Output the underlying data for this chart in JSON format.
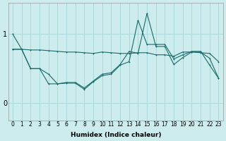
{
  "xlabel": "Humidex (Indice chaleur)",
  "bg_color": "#cceced",
  "grid_color": "#aad8da",
  "line_color": "#1a6b6b",
  "x_ticks": [
    0,
    1,
    2,
    3,
    4,
    5,
    6,
    7,
    8,
    9,
    10,
    11,
    12,
    13,
    14,
    15,
    16,
    17,
    18,
    19,
    20,
    21,
    22,
    23
  ],
  "ylim": [
    -0.25,
    1.45
  ],
  "yticks": [
    0,
    1
  ],
  "line1_y": [
    0.78,
    0.78,
    0.77,
    0.77,
    0.76,
    0.75,
    0.74,
    0.74,
    0.73,
    0.72,
    0.74,
    0.73,
    0.72,
    0.72,
    0.73,
    0.73,
    0.7,
    0.7,
    0.68,
    0.74,
    0.74,
    0.73,
    0.72,
    0.6
  ],
  "line2_y": [
    1.0,
    0.78,
    0.5,
    0.5,
    0.42,
    0.28,
    0.3,
    0.3,
    0.22,
    0.32,
    0.42,
    0.44,
    0.56,
    0.75,
    0.72,
    1.3,
    0.82,
    0.82,
    0.56,
    0.66,
    0.74,
    0.74,
    0.65,
    0.36
  ],
  "line3_y": [
    0.78,
    0.78,
    0.5,
    0.5,
    0.28,
    0.28,
    0.29,
    0.29,
    0.2,
    0.31,
    0.4,
    0.42,
    0.55,
    0.6,
    1.2,
    0.85,
    0.85,
    0.85,
    0.64,
    0.7,
    0.75,
    0.75,
    0.55,
    0.36
  ],
  "xlabel_fontsize": 6.5,
  "tick_fontsize": 5.5,
  "ytick_fontsize": 7
}
